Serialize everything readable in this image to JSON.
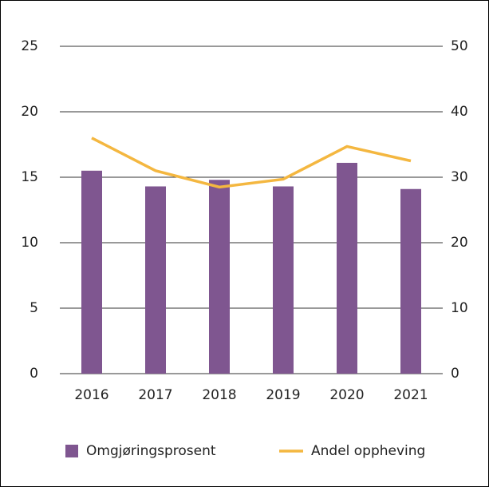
{
  "chart_data": {
    "type": "bar_line",
    "categories": [
      "2016",
      "2017",
      "2018",
      "2019",
      "2020",
      "2021"
    ],
    "series": [
      {
        "name": "Omgjøringsprosent",
        "color": "#7f5690",
        "type": "bar",
        "values": [
          15.5,
          14.3,
          14.8,
          14.3,
          16.1,
          14.1
        ]
      },
      {
        "name": "Andel oppheving",
        "color": "#f4b740",
        "type": "line",
        "axis": "y2",
        "values": [
          36,
          31,
          28.5,
          29.7,
          34.7,
          32.5
        ]
      }
    ],
    "ylim": [
      0,
      25
    ],
    "yticks": [
      0,
      5,
      10,
      15,
      20,
      25
    ],
    "y2lim": [
      0,
      50
    ],
    "y2ticks": [
      0,
      10,
      20,
      30,
      40,
      50
    ],
    "grid": true,
    "legend": "bottom"
  }
}
